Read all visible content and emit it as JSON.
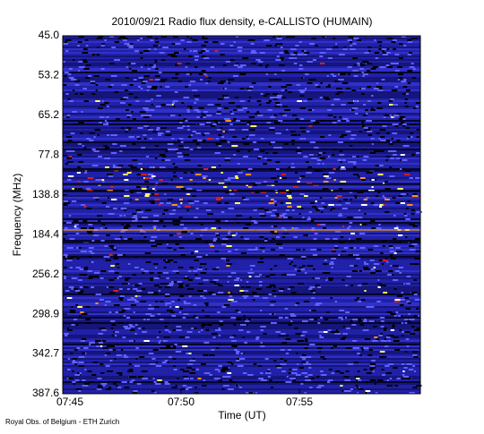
{
  "chart_data": {
    "type": "spectrogram",
    "title": "2010/09/21  Radio flux density, e-CALLISTO (HUMAIN)",
    "y_label": "Frequency (MHz)",
    "x_label": "Time (UT)",
    "footer": "Royal Obs. of Belgium - ETH Zurich",
    "ylim": [
      45.0,
      387.6
    ],
    "yticks": [
      {
        "value": 45.0,
        "label": "45.0"
      },
      {
        "value": 53.2,
        "label": "53.2"
      },
      {
        "value": 65.2,
        "label": "65.2"
      },
      {
        "value": 77.8,
        "label": "77.8"
      },
      {
        "value": 138.8,
        "label": "138.8"
      },
      {
        "value": 184.4,
        "label": "184.4"
      },
      {
        "value": 256.2,
        "label": "256.2"
      },
      {
        "value": 298.9,
        "label": "298.9"
      },
      {
        "value": 342.7,
        "label": "342.7"
      },
      {
        "value": 387.6,
        "label": "387.6"
      }
    ],
    "xticks": [
      "07:45",
      "07:50",
      "07:55"
    ]
  }
}
